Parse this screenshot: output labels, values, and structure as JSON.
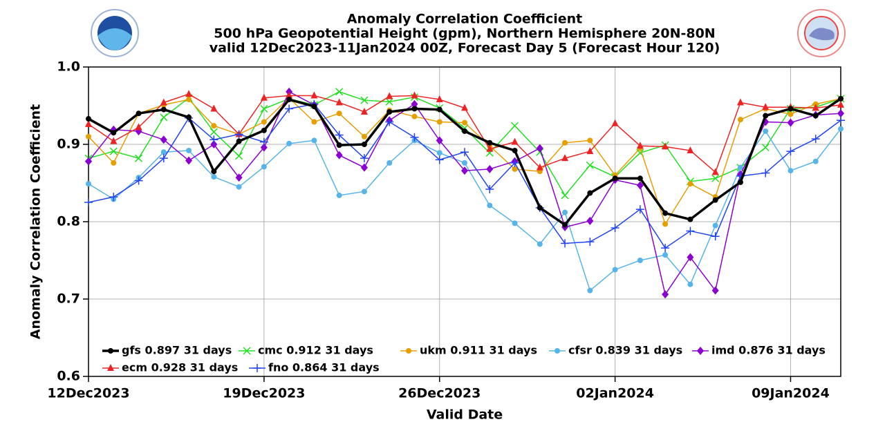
{
  "chart_data": {
    "type": "line",
    "title": [
      "Anomaly Correlation Coefficient",
      "500 hPa Geopotential Height (gpm), Northern Hemisphere 20N-80N",
      "valid 12Dec2023-11Jan2024 00Z, Forecast Day 5 (Forecast Hour 120)"
    ],
    "x_label": "Valid Date",
    "y_label": "Anomaly Correlation Coefficient",
    "x": [
      "2023-12-12",
      "2023-12-13",
      "2023-12-14",
      "2023-12-15",
      "2023-12-16",
      "2023-12-17",
      "2023-12-18",
      "2023-12-19",
      "2023-12-20",
      "2023-12-21",
      "2023-12-22",
      "2023-12-23",
      "2023-12-24",
      "2023-12-25",
      "2023-12-26",
      "2023-12-27",
      "2023-12-28",
      "2023-12-29",
      "2023-12-30",
      "2023-12-31",
      "2024-01-01",
      "2024-01-02",
      "2024-01-03",
      "2024-01-04",
      "2024-01-05",
      "2024-01-06",
      "2024-01-07",
      "2024-01-08",
      "2024-01-09",
      "2024-01-10",
      "2024-01-11"
    ],
    "xlim": [
      "2023-12-12",
      "2024-01-11"
    ],
    "xticks": [
      {
        "value": "2023-12-12",
        "label": "12Dec2023"
      },
      {
        "value": "2023-12-19",
        "label": "19Dec2023"
      },
      {
        "value": "2023-12-26",
        "label": "26Dec2023"
      },
      {
        "value": "2024-01-02",
        "label": "02Jan2024"
      },
      {
        "value": "2024-01-09",
        "label": "09Jan2024"
      }
    ],
    "ylim": [
      0.6,
      1.0
    ],
    "yticks": [
      0.6,
      0.7,
      0.8,
      0.9,
      {
        "value": 1.0,
        "label": "1.0"
      }
    ],
    "grid": true,
    "series": [
      {
        "name": "gfs 0.897 31 days",
        "color": "#000000",
        "marker": "circle",
        "width": 3.5,
        "values": [
          0.933,
          0.915,
          0.94,
          0.945,
          0.935,
          0.865,
          0.904,
          0.918,
          0.958,
          0.949,
          0.899,
          0.9,
          0.942,
          0.946,
          0.945,
          0.917,
          0.902,
          0.892,
          0.818,
          0.796,
          0.837,
          0.856,
          0.856,
          0.811,
          0.803,
          0.828,
          0.851,
          0.937,
          0.946,
          0.937,
          0.959
        ]
      },
      {
        "name": "cmc 0.912 31 days",
        "color": "#22e022",
        "marker": "x",
        "width": 1.5,
        "values": [
          0.882,
          0.891,
          0.882,
          0.935,
          0.96,
          0.916,
          0.885,
          0.946,
          0.959,
          0.951,
          0.968,
          0.957,
          0.955,
          0.961,
          0.947,
          0.921,
          0.889,
          0.924,
          0.89,
          0.834,
          0.873,
          0.858,
          0.889,
          0.899,
          0.852,
          0.856,
          0.87,
          0.896,
          0.946,
          0.948,
          0.959
        ]
      },
      {
        "name": "ukm 0.911 31 days",
        "color": "#e69f00",
        "marker": "circle",
        "width": 1.5,
        "values": [
          0.91,
          0.876,
          0.94,
          0.951,
          0.958,
          0.924,
          0.913,
          0.929,
          0.96,
          0.929,
          0.94,
          0.91,
          0.944,
          0.936,
          0.929,
          0.928,
          0.898,
          0.868,
          0.865,
          0.902,
          0.905,
          0.86,
          0.895,
          0.797,
          0.849,
          0.832,
          0.932,
          0.946,
          0.939,
          0.952,
          0.959
        ]
      },
      {
        "name": "cfsr 0.839 31 days",
        "color": "#56b4e9",
        "marker": "circle",
        "width": 1.5,
        "values": [
          0.849,
          0.829,
          0.857,
          0.89,
          0.892,
          0.858,
          0.845,
          0.871,
          0.901,
          0.905,
          0.834,
          0.839,
          0.876,
          0.905,
          0.889,
          0.876,
          0.821,
          0.798,
          0.771,
          0.812,
          0.711,
          0.738,
          0.75,
          0.757,
          0.719,
          0.795,
          0.87,
          0.917,
          0.866,
          0.878,
          0.92
        ]
      },
      {
        "name": "imd 0.876 31 days",
        "color": "#8b00d0",
        "marker": "diamond",
        "width": 1.5,
        "values": [
          0.878,
          0.919,
          0.917,
          0.906,
          0.879,
          0.9,
          0.857,
          0.896,
          0.968,
          0.951,
          0.886,
          0.87,
          0.931,
          0.952,
          0.905,
          0.866,
          0.868,
          0.878,
          0.895,
          0.793,
          0.801,
          0.854,
          0.847,
          0.706,
          0.754,
          0.711,
          0.861,
          0.929,
          0.928,
          0.938,
          0.94
        ]
      },
      {
        "name": "ecm 0.928 31 days",
        "color": "#ee2222",
        "marker": "triangle",
        "width": 1.5,
        "values": [
          0.926,
          0.904,
          0.922,
          0.954,
          0.965,
          0.946,
          0.913,
          0.96,
          0.963,
          0.963,
          0.954,
          0.942,
          0.962,
          0.963,
          0.958,
          0.947,
          0.894,
          0.903,
          0.87,
          0.882,
          0.891,
          0.927,
          0.898,
          0.897,
          0.892,
          0.864,
          0.954,
          0.948,
          0.948,
          0.947,
          0.951
        ]
      },
      {
        "name": "fno 0.864 31 days",
        "color": "#2244ee",
        "marker": "plus",
        "width": 1.5,
        "values": [
          0.825,
          0.832,
          0.853,
          0.882,
          0.934,
          0.906,
          0.913,
          0.903,
          0.946,
          0.952,
          0.912,
          0.882,
          0.929,
          0.909,
          0.88,
          0.89,
          0.842,
          0.876,
          0.818,
          0.772,
          0.774,
          0.792,
          0.816,
          0.766,
          0.788,
          0.781,
          0.859,
          0.863,
          0.891,
          0.907,
          0.931
        ]
      }
    ]
  }
}
